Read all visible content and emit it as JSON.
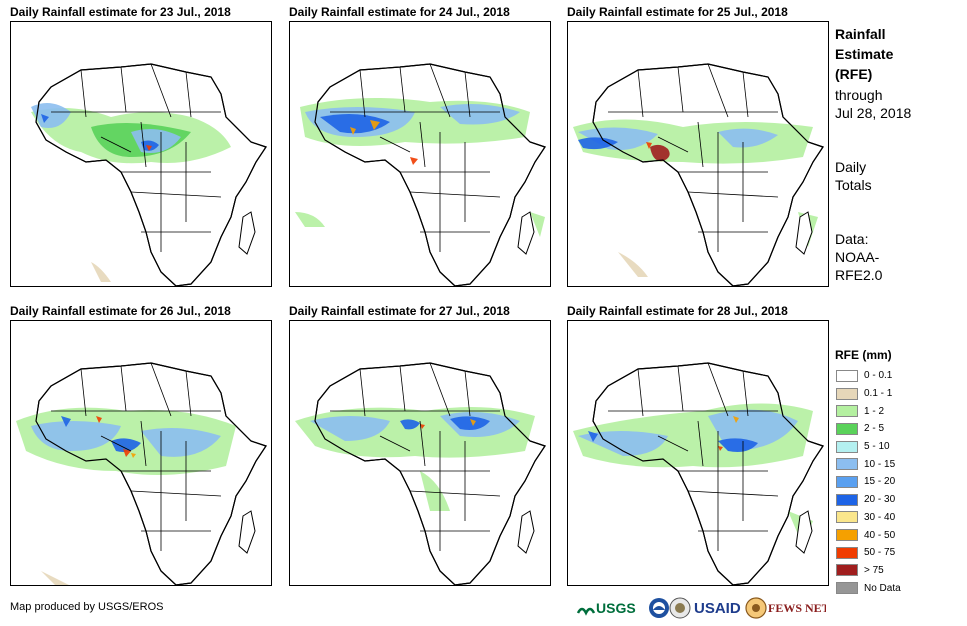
{
  "maps": [
    {
      "title": "Daily Rainfall estimate for 23 Jul., 2018"
    },
    {
      "title": "Daily Rainfall estimate for 24 Jul., 2018"
    },
    {
      "title": "Daily Rainfall estimate for 25 Jul., 2018"
    },
    {
      "title": "Daily Rainfall estimate for 26 Jul., 2018"
    },
    {
      "title": "Daily Rainfall estimate for 27 Jul., 2018"
    },
    {
      "title": "Daily Rainfall estimate for 28 Jul., 2018"
    }
  ],
  "side": {
    "line1": "Rainfall",
    "line2": "Estimate",
    "line3": "(RFE)",
    "line4": "through",
    "line5": "Jul 28, 2018",
    "line6": "Daily",
    "line7": "Totals",
    "line8": "Data:",
    "line9": "NOAA-",
    "line10": "RFE2.0"
  },
  "legend": {
    "title": "RFE (mm)",
    "items": [
      {
        "label": "0 - 0.1",
        "color": "#ffffff"
      },
      {
        "label": "0.1 - 1",
        "color": "#e6d7b9"
      },
      {
        "label": "1 - 2",
        "color": "#b4f0a0"
      },
      {
        "label": "2 - 5",
        "color": "#5ad25a"
      },
      {
        "label": "5 - 10",
        "color": "#b4f0f0"
      },
      {
        "label": "10 - 15",
        "color": "#8cbef0"
      },
      {
        "label": "15 - 20",
        "color": "#5aa0f0"
      },
      {
        "label": "20 - 30",
        "color": "#1e64e6"
      },
      {
        "label": "30 - 40",
        "color": "#fae68c"
      },
      {
        "label": "40 - 50",
        "color": "#f5a000"
      },
      {
        "label": "50 - 75",
        "color": "#f03c00"
      },
      {
        "label": "> 75",
        "color": "#a01e1e"
      },
      {
        "label": "No Data",
        "color": "#969696"
      }
    ]
  },
  "credit": "Map produced by USGS/EROS",
  "logos": {
    "usgs": "USGS",
    "usaid": "USAID",
    "fews": "FEWS NET"
  }
}
